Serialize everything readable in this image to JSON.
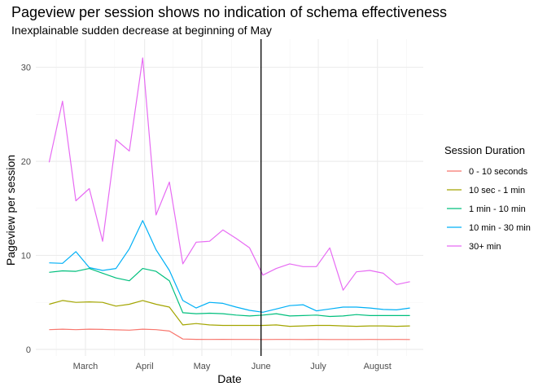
{
  "chart_data": {
    "type": "line",
    "title": "Pageview per session shows no indication of schema effectiveness",
    "subtitle": "Inexplainable sudden decrease at beginning of May",
    "xlabel": "Date",
    "ylabel": "Pageview per session",
    "x": [
      "2019-02-24",
      "2019-03-03",
      "2019-03-10",
      "2019-03-17",
      "2019-03-24",
      "2019-03-31",
      "2019-04-07",
      "2019-04-14",
      "2019-04-21",
      "2019-04-28",
      "2019-05-05",
      "2019-05-12",
      "2019-05-19",
      "2019-05-26",
      "2019-06-02",
      "2019-06-09",
      "2019-06-16",
      "2019-06-23",
      "2019-06-30",
      "2019-07-07",
      "2019-07-14",
      "2019-07-21",
      "2019-07-28",
      "2019-08-04",
      "2019-08-11",
      "2019-08-18",
      "2019-08-25",
      "2019-09-01"
    ],
    "xlim": [
      "2019-02-17",
      "2019-09-08"
    ],
    "x_ticks": [
      {
        "date": "2019-03-15",
        "label": "March"
      },
      {
        "date": "2019-04-15",
        "label": "April"
      },
      {
        "date": "2019-05-15",
        "label": "May"
      },
      {
        "date": "2019-06-15",
        "label": "June"
      },
      {
        "date": "2019-07-15",
        "label": "July"
      },
      {
        "date": "2019-08-15",
        "label": "August"
      }
    ],
    "ylim": [
      -0.7,
      33
    ],
    "y_ticks": [
      0,
      10,
      20,
      30
    ],
    "grid": true,
    "annotations": [
      {
        "type": "vline",
        "x": "2019-06-15",
        "color": "#000000"
      }
    ],
    "legend": {
      "title": "Session Duration",
      "position": "right"
    },
    "series": [
      {
        "name": "0 - 10 seconds",
        "color": "#F8766D",
        "values": [
          2.1,
          2.15,
          2.1,
          2.15,
          2.12,
          2.08,
          2.05,
          2.15,
          2.1,
          1.95,
          1.1,
          1.07,
          1.06,
          1.07,
          1.06,
          1.06,
          1.05,
          1.06,
          1.06,
          1.05,
          1.06,
          1.05,
          1.05,
          1.05,
          1.06,
          1.05,
          1.06,
          1.05
        ]
      },
      {
        "name": "10 sec - 1 min",
        "color": "#A3A500",
        "values": [
          4.8,
          5.2,
          5.0,
          5.05,
          5.0,
          4.6,
          4.8,
          5.2,
          4.8,
          4.5,
          2.6,
          2.75,
          2.6,
          2.55,
          2.55,
          2.55,
          2.55,
          2.6,
          2.45,
          2.5,
          2.55,
          2.55,
          2.5,
          2.45,
          2.5,
          2.5,
          2.45,
          2.5
        ]
      },
      {
        "name": "1 min - 10 min",
        "color": "#00BF7D",
        "values": [
          8.2,
          8.35,
          8.3,
          8.6,
          8.1,
          7.6,
          7.3,
          8.6,
          8.3,
          7.3,
          3.9,
          3.8,
          3.85,
          3.8,
          3.65,
          3.55,
          3.65,
          3.8,
          3.55,
          3.6,
          3.65,
          3.5,
          3.55,
          3.7,
          3.6,
          3.6,
          3.6,
          3.6
        ]
      },
      {
        "name": "10 min - 30 min",
        "color": "#00B0F6",
        "values": [
          9.2,
          9.15,
          10.4,
          8.7,
          8.4,
          8.6,
          10.7,
          13.7,
          10.6,
          8.4,
          5.2,
          4.4,
          5.0,
          4.9,
          4.5,
          4.15,
          3.95,
          4.3,
          4.65,
          4.75,
          4.1,
          4.3,
          4.5,
          4.5,
          4.4,
          4.25,
          4.2,
          4.4
        ]
      },
      {
        "name": "30+ min",
        "color": "#E76BF3",
        "values": [
          19.9,
          26.4,
          15.8,
          17.1,
          11.5,
          22.3,
          21.1,
          31.0,
          14.3,
          17.8,
          9.1,
          11.4,
          11.5,
          12.7,
          11.8,
          10.8,
          7.9,
          8.6,
          9.1,
          8.8,
          8.8,
          10.8,
          6.3,
          8.25,
          8.4,
          8.1,
          6.9,
          7.2
        ]
      }
    ]
  }
}
